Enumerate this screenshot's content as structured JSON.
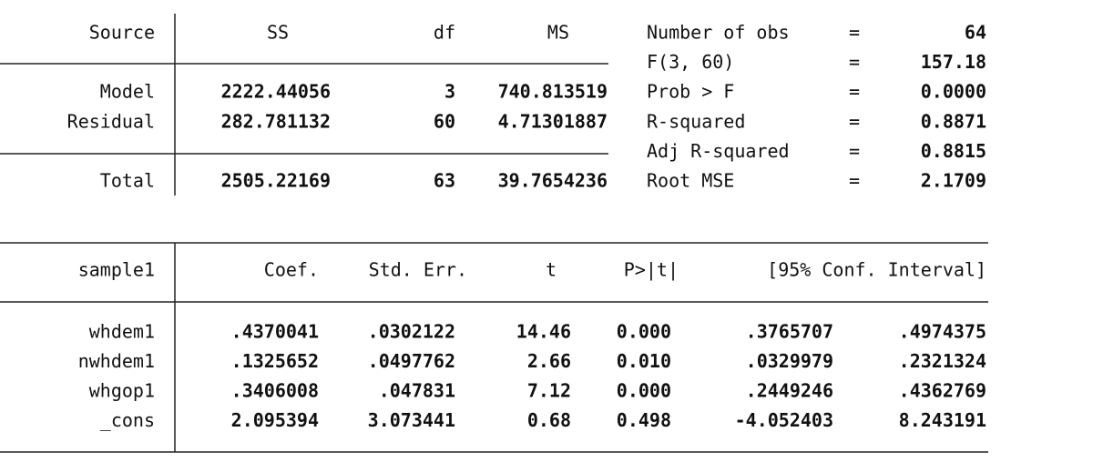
{
  "anova": {
    "header": [
      "Source",
      "SS",
      "df",
      "MS"
    ],
    "rows": [
      [
        "Model",
        "2222.44056",
        "3",
        "740.813519"
      ],
      [
        "Residual",
        "282.781132",
        "60",
        "4.71301887"
      ]
    ],
    "total": [
      "Total",
      "2505.22169",
      "63",
      "39.7654236"
    ]
  },
  "stats": [
    [
      "Number of obs",
      "=",
      "64"
    ],
    [
      "F(3, 60)",
      "=",
      "157.18"
    ],
    [
      "Prob > F",
      "=",
      "0.0000"
    ],
    [
      "R-squared",
      "=",
      "0.8871"
    ],
    [
      "Adj R-squared",
      "=",
      "0.8815"
    ],
    [
      "Root MSE",
      "=",
      "2.1709"
    ]
  ],
  "coef": {
    "header": [
      "sample1",
      "Coef.",
      "Std. Err.",
      "t",
      "P>|t|",
      "[95% Conf. Interval]"
    ],
    "rows": [
      [
        "whdem1",
        ".4370041",
        ".0302122",
        "14.46",
        "0.000",
        ".3765707",
        ".4974375"
      ],
      [
        "nwhdem1",
        ".1325652",
        ".0497762",
        "2.66",
        "0.010",
        ".0329979",
        ".2321324"
      ],
      [
        "whgop1",
        ".3406008",
        ".047831",
        "7.12",
        "0.000",
        ".2449246",
        ".4362769"
      ],
      [
        "_cons",
        "2.095394",
        "3.073441",
        "0.68",
        "0.498",
        "-4.052403",
        "8.243191"
      ]
    ]
  }
}
